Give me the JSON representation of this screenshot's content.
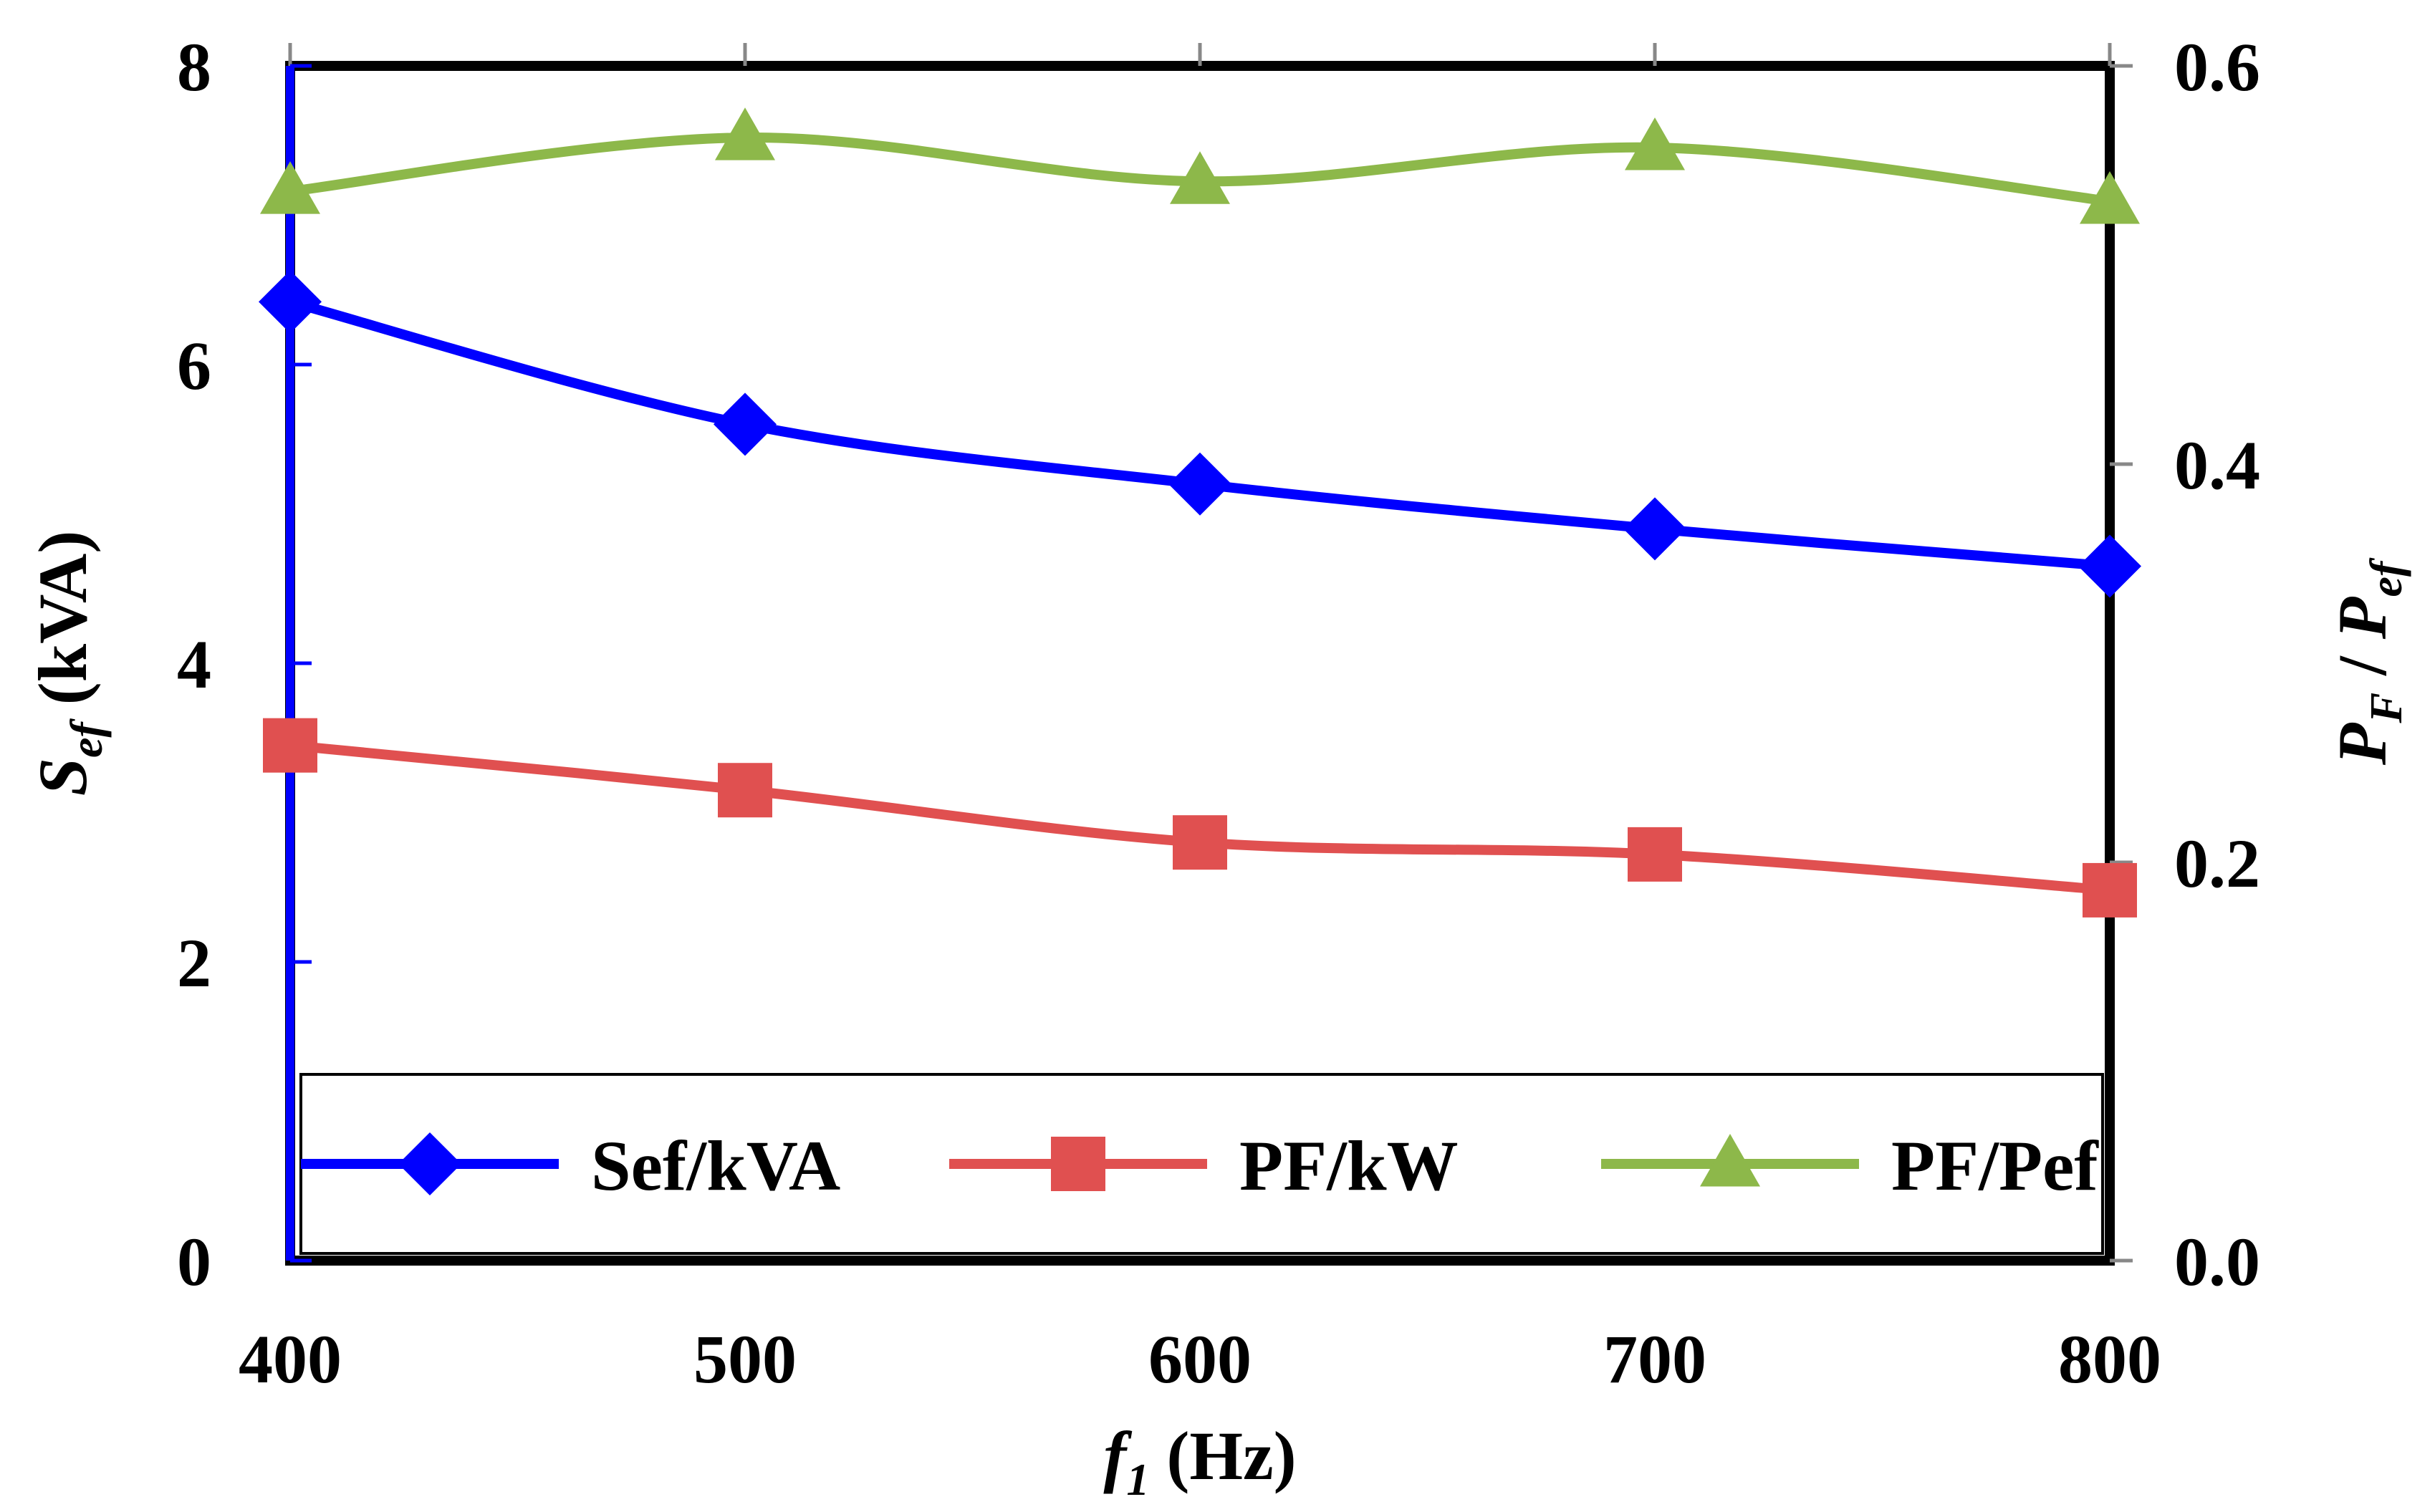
{
  "chart_data": {
    "type": "line",
    "x": [
      400,
      500,
      600,
      700,
      800
    ],
    "series": [
      {
        "name": "Sef/kVA",
        "axis": "left",
        "color": "#0000ff",
        "marker": "diamond",
        "values": [
          6.42,
          5.6,
          5.2,
          4.9,
          4.65
        ]
      },
      {
        "name": "PF/kW",
        "axis": "left",
        "color": "#e05050",
        "marker": "square",
        "values": [
          3.45,
          3.15,
          2.8,
          2.72,
          2.48
        ]
      },
      {
        "name": "PF/Pef",
        "axis": "right",
        "color": "#8db84a",
        "marker": "triangle",
        "values": [
          0.537,
          0.564,
          0.542,
          0.559,
          0.532
        ]
      }
    ],
    "xlim": [
      400,
      800
    ],
    "ylim_left": [
      0,
      8
    ],
    "ylim_right": [
      0,
      0.6
    ],
    "x_ticks": [
      "400",
      "500",
      "600",
      "700",
      "800"
    ],
    "y_left_ticks": [
      "0",
      "2",
      "4",
      "6",
      "8"
    ],
    "y_right_ticks": [
      "0.0",
      "0.2",
      "0.4",
      "0.6"
    ],
    "xlabel": {
      "main": "f",
      "sub": "1",
      "unit": " (Hz)"
    },
    "ylabel_left": {
      "main": "S",
      "sub": "ef",
      "unit": " (kVA)"
    },
    "ylabel_right": {
      "main1": "P",
      "sub1": "F",
      "sep": " / ",
      "main2": "P",
      "sub2": "ef"
    },
    "legend": {
      "position": "bottom-inside",
      "entries": [
        "Sef/kVA",
        "PF/kW",
        "PF/Pef"
      ]
    }
  }
}
